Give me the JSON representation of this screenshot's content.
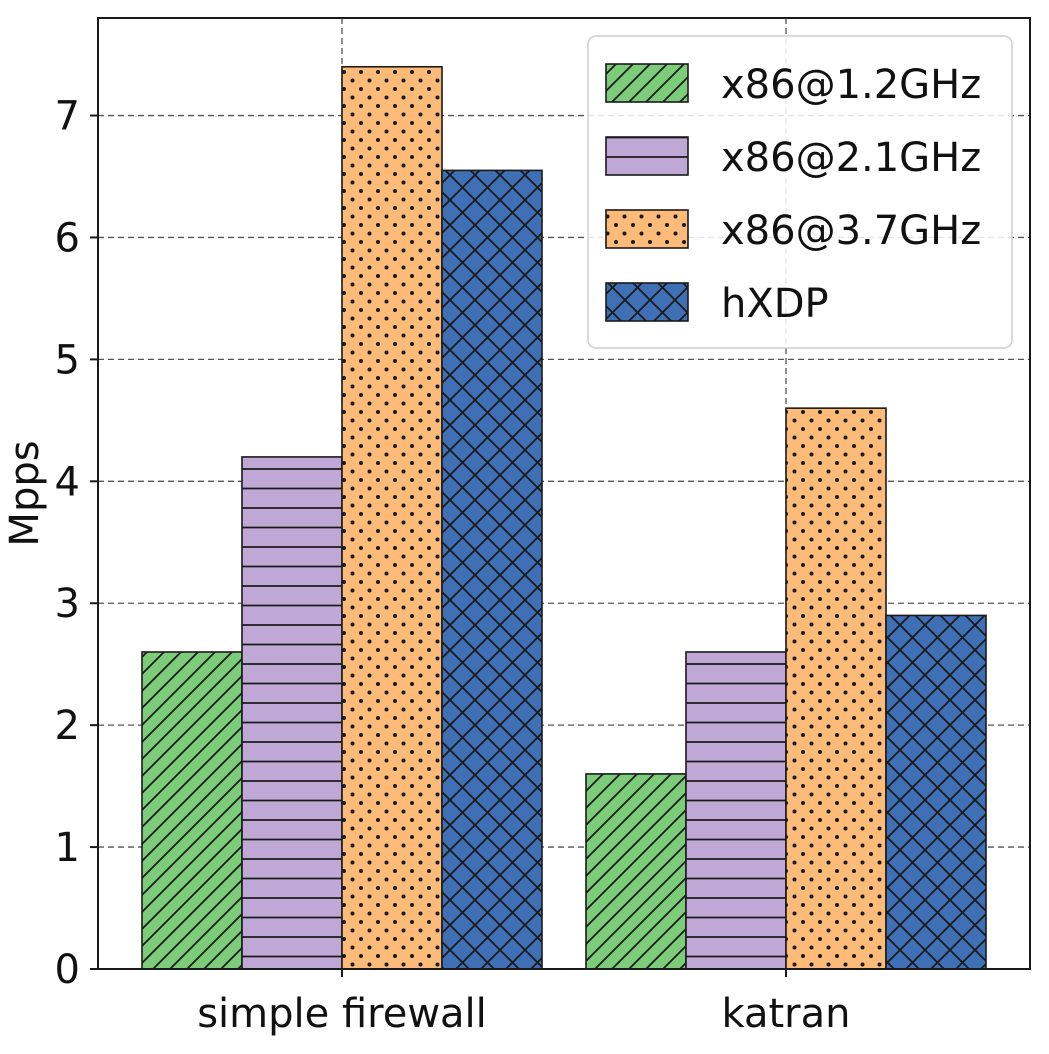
{
  "chart_data": {
    "type": "bar",
    "title": "",
    "xlabel": "",
    "ylabel": "Mpps",
    "ylim": [
      0,
      7.8
    ],
    "yticks": [
      0,
      1,
      2,
      3,
      4,
      5,
      6,
      7
    ],
    "grid": true,
    "legend_position": "top-right",
    "categories": [
      "simple firewall",
      "katran"
    ],
    "series": [
      {
        "name": "x86@1.2GHz",
        "values": [
          2.6,
          1.6
        ],
        "color": "#7ccc7a",
        "pattern": "diagonal-hatch"
      },
      {
        "name": "x86@2.1GHz",
        "values": [
          4.2,
          2.6
        ],
        "color": "#bfa8d6",
        "pattern": "horizontal-lines"
      },
      {
        "name": "x86@3.7GHz",
        "values": [
          7.4,
          4.6
        ],
        "color": "#fcbb79",
        "pattern": "dots"
      },
      {
        "name": "hXDP",
        "values": [
          6.55,
          2.9
        ],
        "color": "#3f6fb5",
        "pattern": "crosshatch"
      }
    ]
  }
}
